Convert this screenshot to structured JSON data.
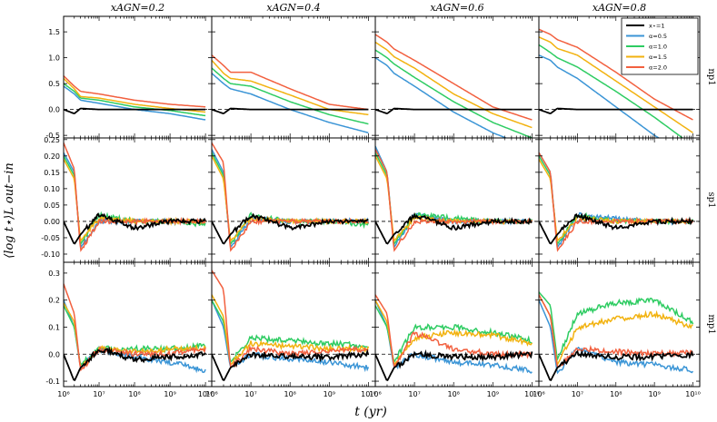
{
  "figure": {
    "xlabel": "t (yr)",
    "ylabel": "⟨log t⋆⟩L out−in",
    "columns": [
      {
        "title": "xAGN=0.2"
      },
      {
        "title": "xAGN=0.4"
      },
      {
        "title": "xAGN=0.6"
      },
      {
        "title": "xAGN=0.8"
      }
    ],
    "rows": [
      {
        "label": "np1",
        "ylim": [
          -0.55,
          1.8
        ],
        "yticks": [
          "-0.5",
          "0.0",
          "0.5",
          "1.0",
          "1.5"
        ],
        "ytick_values": [
          -0.5,
          0,
          0.5,
          1,
          1.5
        ]
      },
      {
        "label": "sp1",
        "ylim": [
          -0.125,
          0.255
        ],
        "yticks": [
          "-0.10",
          "-0.05",
          "0.00",
          "0.05",
          "0.10",
          "0.15",
          "0.20",
          "0.25"
        ],
        "ytick_values": [
          -0.1,
          -0.05,
          0,
          0.05,
          0.1,
          0.15,
          0.2,
          0.25
        ]
      },
      {
        "label": "mp1",
        "ylim": [
          -0.12,
          0.34
        ],
        "yticks": [
          "-0.1",
          "0.0",
          "0.1",
          "0.2",
          "0.3"
        ],
        "ytick_values": [
          -0.1,
          0,
          0.1,
          0.2,
          0.3
        ]
      }
    ],
    "xticks": [
      "10⁶",
      "10⁷",
      "10⁸",
      "10⁹",
      "10¹⁰"
    ],
    "legend": {
      "position": "top-right",
      "entries": [
        {
          "label": "x⋆=1",
          "color": "#000000"
        },
        {
          "label": "α=0.5",
          "color": "#3b95d6"
        },
        {
          "label": "α=1.0",
          "color": "#2ecc62"
        },
        {
          "label": "α=1.5",
          "color": "#f2b20f"
        },
        {
          "label": "α=2.0",
          "color": "#f2603f"
        }
      ]
    }
  },
  "chart_data": {
    "type": "line",
    "xscale": "log",
    "xlim": [
      1000000,
      15000000000
    ],
    "series_colors": {
      "black": "#000000",
      "a05": "#3b95d6",
      "a10": "#2ecc62",
      "a15": "#f2b20f",
      "a20": "#f2603f"
    },
    "x": [
      1000000,
      2000000,
      3000000,
      10000000,
      100000000,
      1000000000,
      10000000000
    ],
    "panels": [
      {
        "row": "np1",
        "col": "xAGN=0.2",
        "series": {
          "black": [
            0.0,
            -0.08,
            0.02,
            0.0,
            0.0,
            0.0,
            0.0
          ],
          "a05": [
            0.45,
            0.3,
            0.18,
            0.12,
            0.0,
            -0.08,
            -0.2
          ],
          "a10": [
            0.5,
            0.35,
            0.22,
            0.18,
            0.05,
            -0.02,
            -0.12
          ],
          "a15": [
            0.6,
            0.4,
            0.25,
            0.22,
            0.1,
            0.02,
            -0.05
          ],
          "a20": [
            0.65,
            0.45,
            0.35,
            0.3,
            0.18,
            0.1,
            0.05
          ]
        }
      },
      {
        "row": "np1",
        "col": "xAGN=0.4",
        "series": {
          "black": [
            0.0,
            -0.08,
            0.02,
            0.0,
            0.0,
            0.0,
            0.0
          ],
          "a05": [
            0.7,
            0.5,
            0.4,
            0.3,
            0.0,
            -0.25,
            -0.45
          ],
          "a10": [
            0.8,
            0.6,
            0.5,
            0.45,
            0.15,
            -0.1,
            -0.28
          ],
          "a15": [
            0.95,
            0.7,
            0.6,
            0.55,
            0.28,
            0.0,
            -0.1
          ],
          "a20": [
            1.05,
            0.85,
            0.72,
            0.72,
            0.4,
            0.1,
            0.0
          ]
        }
      },
      {
        "row": "np1",
        "col": "xAGN=0.6",
        "series": {
          "black": [
            0.0,
            -0.08,
            0.02,
            0.0,
            0.0,
            0.0,
            0.0
          ],
          "a05": [
            1.0,
            0.85,
            0.7,
            0.45,
            -0.05,
            -0.45,
            -0.75
          ],
          "a10": [
            1.15,
            1.0,
            0.88,
            0.62,
            0.15,
            -0.25,
            -0.55
          ],
          "a15": [
            1.3,
            1.15,
            1.02,
            0.8,
            0.3,
            -0.08,
            -0.35
          ],
          "a20": [
            1.45,
            1.3,
            1.17,
            0.95,
            0.5,
            0.05,
            -0.2
          ]
        }
      },
      {
        "row": "np1",
        "col": "xAGN=0.8",
        "series": {
          "black": [
            0.0,
            -0.08,
            0.02,
            0.0,
            0.0,
            0.0,
            0.0
          ],
          "a05": [
            1.05,
            0.95,
            0.82,
            0.6,
            0.05,
            -0.5,
            -0.95
          ],
          "a10": [
            1.25,
            1.1,
            1.0,
            0.82,
            0.35,
            -0.15,
            -0.7
          ],
          "a15": [
            1.4,
            1.3,
            1.18,
            1.05,
            0.55,
            0.05,
            -0.45
          ],
          "a20": [
            1.55,
            1.45,
            1.35,
            1.2,
            0.72,
            0.2,
            -0.2
          ]
        }
      },
      {
        "row": "sp1",
        "col": "xAGN=0.2",
        "series": {
          "black": [
            0.0,
            -0.07,
            -0.04,
            0.02,
            -0.02,
            0.0,
            0.0
          ],
          "a05": [
            0.21,
            0.15,
            -0.08,
            0.0,
            0.0,
            0.0,
            0.0
          ],
          "a10": [
            0.2,
            0.14,
            -0.07,
            0.02,
            0.0,
            0.0,
            -0.01
          ],
          "a15": [
            0.19,
            0.13,
            -0.06,
            0.01,
            0.0,
            0.0,
            0.0
          ],
          "a20": [
            0.24,
            0.16,
            -0.09,
            0.0,
            0.0,
            0.0,
            0.0
          ]
        }
      },
      {
        "row": "sp1",
        "col": "xAGN=0.4",
        "series": {
          "black": [
            0.0,
            -0.07,
            -0.04,
            0.02,
            -0.02,
            0.0,
            0.0
          ],
          "a05": [
            0.22,
            0.15,
            -0.08,
            0.01,
            0.0,
            0.0,
            0.0
          ],
          "a10": [
            0.21,
            0.14,
            -0.07,
            0.02,
            0.0,
            0.0,
            -0.01
          ],
          "a15": [
            0.2,
            0.13,
            -0.06,
            0.01,
            0.0,
            0.0,
            0.0
          ],
          "a20": [
            0.24,
            0.18,
            -0.09,
            0.0,
            0.0,
            0.0,
            0.0
          ]
        }
      },
      {
        "row": "sp1",
        "col": "xAGN=0.6",
        "series": {
          "black": [
            0.0,
            -0.07,
            -0.04,
            0.02,
            -0.02,
            0.0,
            0.0
          ],
          "a05": [
            0.23,
            0.15,
            -0.08,
            0.02,
            0.0,
            0.0,
            0.0
          ],
          "a10": [
            0.21,
            0.14,
            -0.07,
            0.02,
            0.01,
            0.0,
            0.0
          ],
          "a15": [
            0.2,
            0.13,
            -0.06,
            0.01,
            0.0,
            0.0,
            0.0
          ],
          "a20": [
            0.22,
            0.15,
            -0.09,
            0.0,
            0.0,
            0.0,
            0.0
          ]
        }
      },
      {
        "row": "sp1",
        "col": "xAGN=0.8",
        "series": {
          "black": [
            0.0,
            -0.07,
            -0.04,
            0.02,
            -0.02,
            0.0,
            0.0
          ],
          "a05": [
            0.21,
            0.15,
            -0.08,
            0.02,
            0.01,
            0.0,
            0.0
          ],
          "a10": [
            0.2,
            0.14,
            -0.07,
            0.02,
            0.0,
            0.0,
            0.0
          ],
          "a15": [
            0.19,
            0.13,
            -0.06,
            0.01,
            0.0,
            0.0,
            0.0
          ],
          "a20": [
            0.21,
            0.15,
            -0.09,
            0.0,
            0.0,
            0.0,
            0.0
          ]
        }
      },
      {
        "row": "mp1",
        "col": "xAGN=0.2",
        "series": {
          "black": [
            0.0,
            -0.1,
            -0.05,
            0.02,
            -0.02,
            -0.01,
            0.0
          ],
          "a05": [
            0.2,
            0.1,
            -0.05,
            0.02,
            -0.01,
            -0.03,
            -0.06
          ],
          "a10": [
            0.18,
            0.1,
            -0.04,
            0.02,
            0.02,
            0.02,
            0.03
          ],
          "a15": [
            0.19,
            0.12,
            -0.05,
            0.02,
            0.01,
            0.02,
            0.02
          ],
          "a20": [
            0.26,
            0.15,
            -0.06,
            0.02,
            0.0,
            0.0,
            0.02
          ]
        }
      },
      {
        "row": "mp1",
        "col": "xAGN=0.4",
        "series": {
          "black": [
            0.0,
            -0.1,
            -0.05,
            0.0,
            -0.01,
            -0.01,
            0.0
          ],
          "a05": [
            0.2,
            0.1,
            -0.05,
            0.0,
            -0.02,
            -0.03,
            -0.05
          ],
          "a10": [
            0.2,
            0.12,
            -0.03,
            0.06,
            0.05,
            0.04,
            0.03
          ],
          "a15": [
            0.22,
            0.14,
            -0.04,
            0.04,
            0.03,
            0.02,
            0.02
          ],
          "a20": [
            0.31,
            0.24,
            -0.05,
            0.02,
            0.0,
            0.01,
            0.02
          ]
        }
      },
      {
        "row": "mp1",
        "col": "xAGN=0.6",
        "series": {
          "black": [
            0.0,
            -0.1,
            -0.05,
            0.0,
            -0.01,
            -0.01,
            0.0
          ],
          "a05": [
            0.2,
            0.1,
            -0.05,
            0.0,
            -0.03,
            -0.04,
            -0.06
          ],
          "a10": [
            0.18,
            0.1,
            -0.03,
            0.1,
            0.1,
            0.08,
            0.05
          ],
          "a15": [
            0.2,
            0.12,
            -0.04,
            0.06,
            0.08,
            0.07,
            0.04
          ],
          "a20": [
            0.22,
            0.15,
            -0.05,
            0.08,
            0.02,
            0.0,
            0.0
          ]
        }
      },
      {
        "row": "mp1",
        "col": "xAGN=0.8",
        "series": {
          "black": [
            0.0,
            -0.1,
            -0.05,
            0.0,
            -0.01,
            -0.01,
            0.0
          ],
          "a05": [
            0.2,
            0.1,
            -0.07,
            0.02,
            -0.03,
            -0.04,
            -0.06
          ],
          "a10": [
            0.23,
            0.18,
            -0.02,
            0.15,
            0.19,
            0.2,
            0.12
          ],
          "a15": [
            0.22,
            0.14,
            -0.04,
            0.1,
            0.13,
            0.15,
            0.1
          ],
          "a20": [
            0.22,
            0.14,
            -0.05,
            0.02,
            0.01,
            0.0,
            0.01
          ]
        }
      }
    ]
  }
}
